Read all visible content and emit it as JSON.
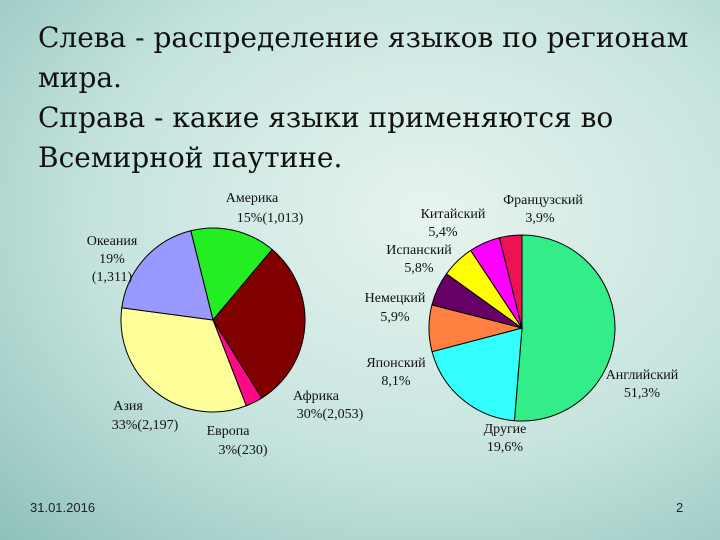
{
  "title_lines": [
    "Слева - распределение языков по регионам",
    "мира.",
    "Справа - какие языки применяются во",
    "Всемирной паутине."
  ],
  "date": "31.01.2016",
  "page_number": "2",
  "chart_data": [
    {
      "type": "pie",
      "categories": [
        "Америка",
        "Африка",
        "Европа",
        "Азия",
        "Океания"
      ],
      "values": [
        15,
        30,
        3,
        33,
        19
      ],
      "value_labels": [
        "15%",
        "30%",
        "3%",
        "33%",
        "19%"
      ],
      "count_labels": [
        "(1,013)",
        "(2,053)",
        "(230)",
        "(2,197)",
        "(1,311)"
      ],
      "colors": [
        "#22ee22",
        "#800000",
        "#ff0a84",
        "#ffff99",
        "#9999ff"
      ]
    },
    {
      "type": "pie",
      "categories": [
        "Английский",
        "Другие",
        "Японский",
        "Немецкий",
        "Испанский",
        "Китайский",
        "Французский"
      ],
      "values": [
        51.3,
        19.6,
        8.1,
        5.9,
        5.8,
        5.4,
        3.9
      ],
      "value_labels": [
        "51,3%",
        "19,6%",
        "8,1%",
        "5,9%",
        "5,8%",
        "5,4%",
        "3,9%"
      ],
      "colors": [
        "#33ee88",
        "#33ffff",
        "#ff8040",
        "#660066",
        "#ffff00",
        "#ff00ff",
        "#ee1155"
      ]
    }
  ]
}
